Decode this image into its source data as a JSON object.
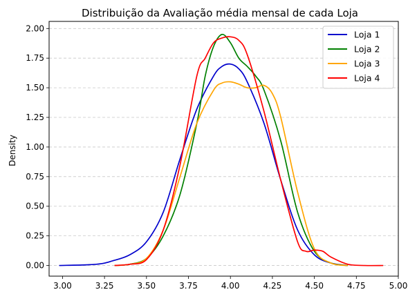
{
  "chart_data": {
    "type": "line",
    "title": "Distribuição da Avaliação média mensal de cada Loja",
    "xlabel": "",
    "ylabel": "Density",
    "xlim": [
      2.92,
      5.0
    ],
    "ylim": [
      -0.09,
      2.06
    ],
    "xticks": [
      "3.00",
      "3.25",
      "3.50",
      "3.75",
      "4.00",
      "4.25",
      "4.50",
      "4.75",
      "5.00"
    ],
    "yticks": [
      "0.00",
      "0.25",
      "0.50",
      "0.75",
      "1.00",
      "1.25",
      "1.50",
      "1.75",
      "2.00"
    ],
    "grid": "y-dashed",
    "legend_position": "top-right",
    "series": [
      {
        "name": "Loja 1",
        "color": "#0000cc",
        "points": [
          [
            2.98,
            0.0
          ],
          [
            3.2,
            0.01
          ],
          [
            3.3,
            0.04
          ],
          [
            3.4,
            0.09
          ],
          [
            3.5,
            0.2
          ],
          [
            3.6,
            0.45
          ],
          [
            3.7,
            0.9
          ],
          [
            3.8,
            1.32
          ],
          [
            3.9,
            1.6
          ],
          [
            3.95,
            1.68
          ],
          [
            4.0,
            1.7
          ],
          [
            4.05,
            1.66
          ],
          [
            4.1,
            1.55
          ],
          [
            4.2,
            1.2
          ],
          [
            4.3,
            0.72
          ],
          [
            4.4,
            0.3
          ],
          [
            4.5,
            0.09
          ],
          [
            4.6,
            0.02
          ],
          [
            4.7,
            0.0
          ]
        ]
      },
      {
        "name": "Loja 2",
        "color": "#008000",
        "points": [
          [
            3.31,
            0.0
          ],
          [
            3.4,
            0.01
          ],
          [
            3.5,
            0.06
          ],
          [
            3.6,
            0.25
          ],
          [
            3.7,
            0.6
          ],
          [
            3.8,
            1.2
          ],
          [
            3.85,
            1.6
          ],
          [
            3.9,
            1.85
          ],
          [
            3.95,
            1.95
          ],
          [
            4.0,
            1.88
          ],
          [
            4.05,
            1.75
          ],
          [
            4.1,
            1.68
          ],
          [
            4.15,
            1.6
          ],
          [
            4.2,
            1.48
          ],
          [
            4.3,
            1.05
          ],
          [
            4.4,
            0.45
          ],
          [
            4.5,
            0.12
          ],
          [
            4.6,
            0.02
          ],
          [
            4.7,
            0.0
          ]
        ]
      },
      {
        "name": "Loja 3",
        "color": "#ffa500",
        "points": [
          [
            3.31,
            0.0
          ],
          [
            3.4,
            0.01
          ],
          [
            3.5,
            0.06
          ],
          [
            3.6,
            0.3
          ],
          [
            3.7,
            0.75
          ],
          [
            3.8,
            1.2
          ],
          [
            3.9,
            1.48
          ],
          [
            3.95,
            1.54
          ],
          [
            4.0,
            1.55
          ],
          [
            4.05,
            1.53
          ],
          [
            4.1,
            1.5
          ],
          [
            4.15,
            1.5
          ],
          [
            4.2,
            1.52
          ],
          [
            4.25,
            1.45
          ],
          [
            4.3,
            1.25
          ],
          [
            4.4,
            0.62
          ],
          [
            4.5,
            0.14
          ],
          [
            4.6,
            0.02
          ],
          [
            4.7,
            0.0
          ]
        ]
      },
      {
        "name": "Loja 4",
        "color": "#ff0000",
        "points": [
          [
            3.31,
            0.0
          ],
          [
            3.4,
            0.01
          ],
          [
            3.5,
            0.05
          ],
          [
            3.6,
            0.3
          ],
          [
            3.7,
            0.85
          ],
          [
            3.8,
            1.6
          ],
          [
            3.85,
            1.75
          ],
          [
            3.9,
            1.88
          ],
          [
            3.95,
            1.92
          ],
          [
            4.0,
            1.93
          ],
          [
            4.05,
            1.9
          ],
          [
            4.1,
            1.78
          ],
          [
            4.2,
            1.3
          ],
          [
            4.3,
            0.72
          ],
          [
            4.4,
            0.2
          ],
          [
            4.45,
            0.12
          ],
          [
            4.5,
            0.13
          ],
          [
            4.55,
            0.12
          ],
          [
            4.6,
            0.07
          ],
          [
            4.7,
            0.01
          ],
          [
            4.8,
            0.0
          ],
          [
            4.91,
            0.0
          ]
        ]
      }
    ]
  }
}
